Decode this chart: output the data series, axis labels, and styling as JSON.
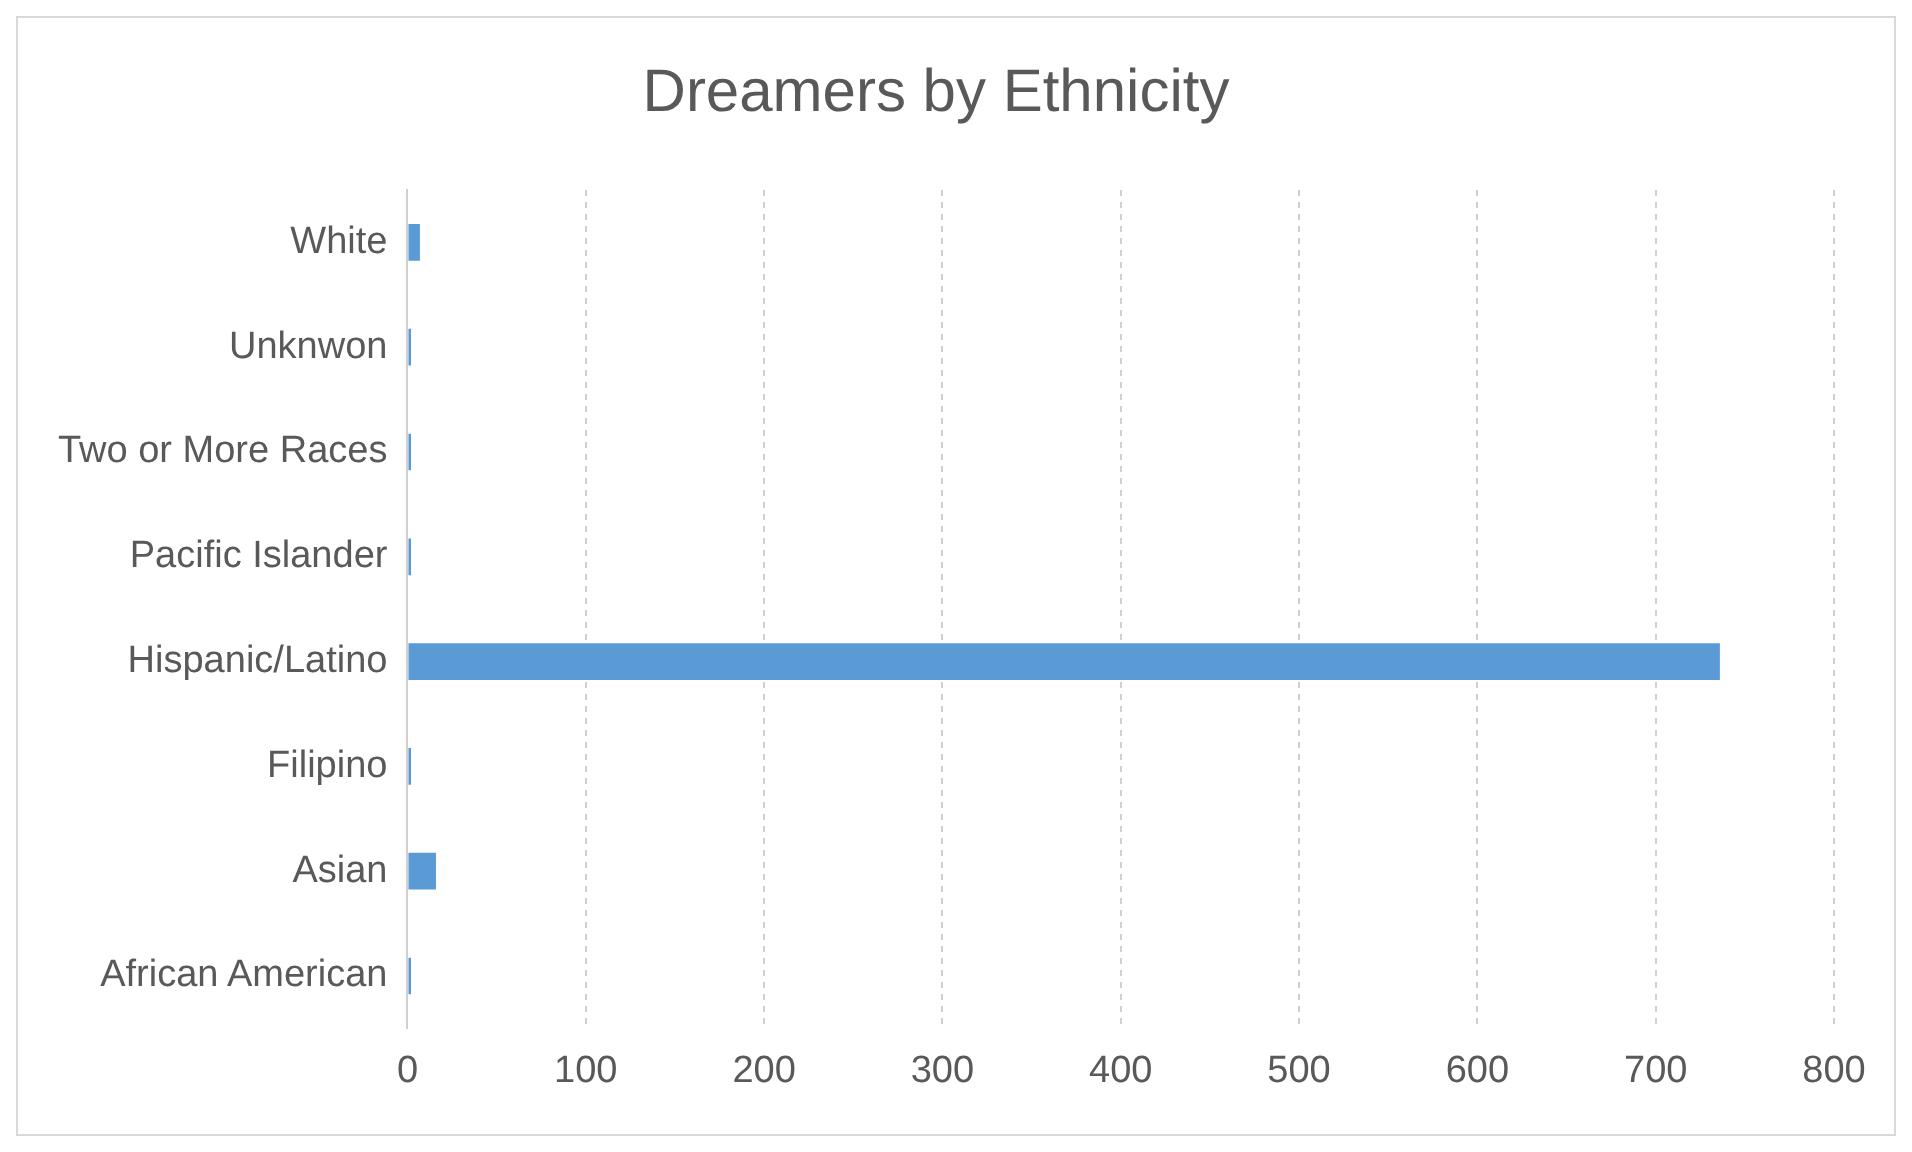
{
  "chart_data": {
    "type": "bar",
    "orientation": "horizontal",
    "title": "Dreamers by Ethnicity",
    "categories": [
      "White",
      "Unknwon",
      "Two or More Races",
      "Pacific Islander",
      "Hispanic/Latino",
      "Filipino",
      "Asian",
      "African American"
    ],
    "values": [
      7,
      2,
      2,
      2,
      736,
      2,
      16,
      2
    ],
    "color": "#5b9bd5",
    "xlim": [
      0,
      800
    ],
    "xticks": [
      0,
      100,
      200,
      300,
      400,
      500,
      600,
      700,
      800
    ],
    "grid": "x"
  }
}
